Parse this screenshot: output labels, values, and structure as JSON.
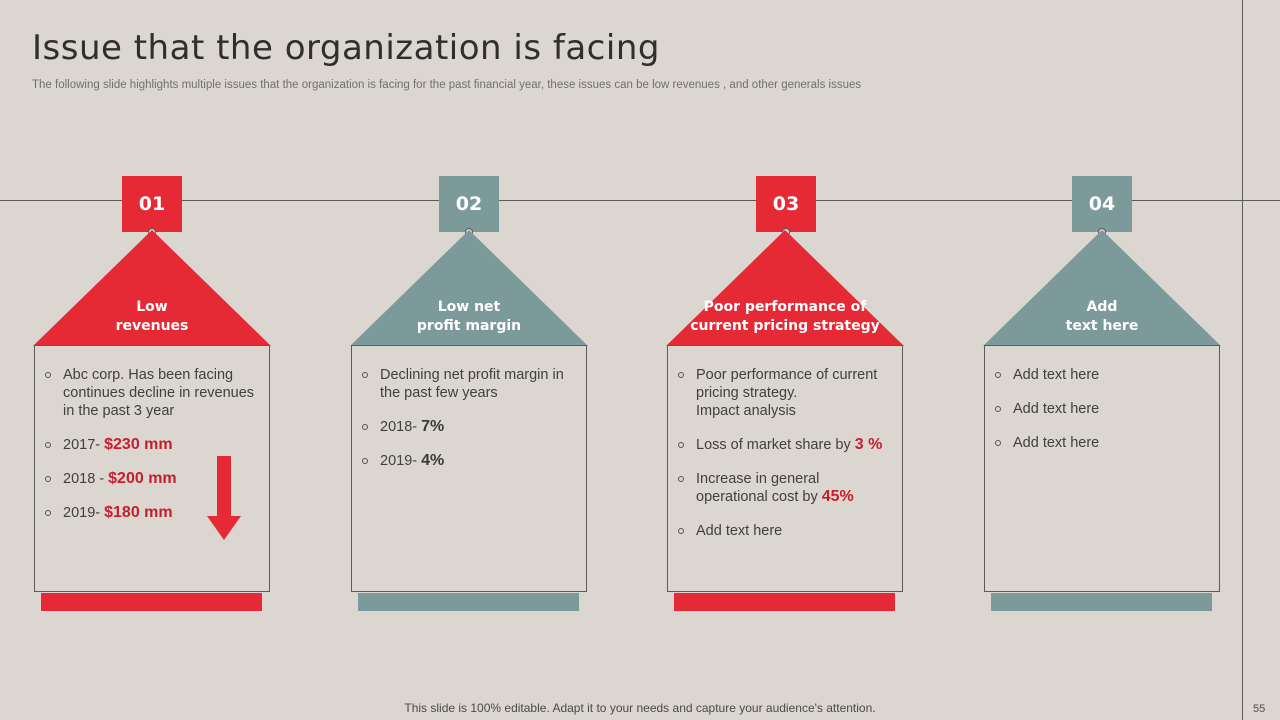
{
  "title": "Issue that the organization is facing",
  "subtitle": "The following slide highlights multiple issues that the organization is facing for the past financial year, these issues can be low revenues , and other generals issues",
  "colors": {
    "red": "#e52a36",
    "teal": "#7d9a9b",
    "text_red": "#c3202f",
    "background": "#dbd6cf"
  },
  "columns": [
    {
      "number": "01",
      "heading_line1": "Low",
      "heading_line2": "revenues",
      "items": [
        {
          "text": "Abc corp. Has been facing continues decline in revenues in the past 3 year",
          "value": ""
        },
        {
          "text": "2017- ",
          "value": "$230 mm"
        },
        {
          "text": "2018 - ",
          "value": "$200 mm"
        },
        {
          "text": "2019- ",
          "value": "$180 mm"
        }
      ],
      "arrow_icon": "arrow-down-icon"
    },
    {
      "number": "02",
      "heading_line1": "Low net",
      "heading_line2": "profit margin",
      "items": [
        {
          "text": "Declining net profit margin in the past few years",
          "value": ""
        },
        {
          "text": "2018- ",
          "value": "7%"
        },
        {
          "text": "2019- ",
          "value": "4%"
        }
      ]
    },
    {
      "number": "03",
      "heading_line1": "Poor performance of",
      "heading_line2": "current pricing strategy",
      "items": [
        {
          "text_line1": "Poor performance of current pricing strategy.",
          "text_line2": "Impact analysis"
        },
        {
          "text": "Loss of market share by ",
          "value": "3 %"
        },
        {
          "text": "Increase in general operational  cost by ",
          "value": "45%"
        },
        {
          "text": "Add text here",
          "value": ""
        }
      ]
    },
    {
      "number": "04",
      "heading_line1": "Add",
      "heading_line2": "text here",
      "items": [
        {
          "text": "Add text here",
          "value": ""
        },
        {
          "text": "Add text here",
          "value": ""
        },
        {
          "text": "Add text here",
          "value": ""
        }
      ]
    }
  ],
  "footer": "This slide is 100% editable. Adapt it to your needs and capture your audience's attention.",
  "page_number": "55"
}
